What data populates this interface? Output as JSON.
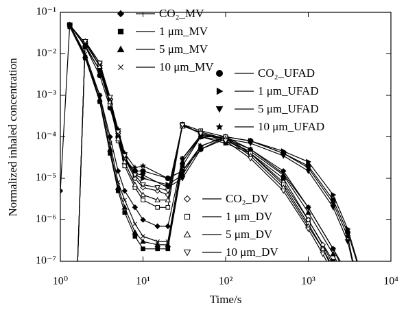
{
  "chart_data": {
    "type": "line",
    "x_label": "Time/s",
    "y_label": "Normalized inhaled concentration",
    "xlog": true,
    "ylog": true,
    "xlim": [
      1,
      10000
    ],
    "ylim": [
      1e-07,
      0.1
    ],
    "xticks": [
      {
        "value": 1,
        "label": "10⁰"
      },
      {
        "value": 10,
        "label": "10¹"
      },
      {
        "value": 100,
        "label": "10²"
      },
      {
        "value": 1000,
        "label": "10³"
      },
      {
        "value": 10000,
        "label": "10⁴"
      }
    ],
    "yticks": [
      {
        "value": 1e-07,
        "label": "10⁻⁷"
      },
      {
        "value": 1e-06,
        "label": "10⁻⁶"
      },
      {
        "value": 1e-05,
        "label": "10⁻⁵"
      },
      {
        "value": 0.0001,
        "label": "10⁻⁴"
      },
      {
        "value": 0.001,
        "label": "10⁻³"
      },
      {
        "value": 0.01,
        "label": "10⁻²"
      },
      {
        "value": 0.1,
        "label": "10⁻¹"
      }
    ],
    "series": [
      {
        "name": "CO₂_MV",
        "color": "#000000",
        "marker": "diamond",
        "fill": true,
        "x": [
          1,
          1.3,
          2,
          3,
          4,
          5,
          6,
          8,
          10,
          15,
          20,
          30,
          50,
          100,
          200,
          500,
          1000,
          2000,
          3000
        ],
        "values": [
          5e-06,
          0.05,
          0.008,
          0.001,
          0.0001,
          1.5e-05,
          5e-06,
          2e-06,
          1e-06,
          7e-07,
          7e-07,
          3e-05,
          0.0001,
          0.0001,
          5e-05,
          1.5e-05,
          2e-06,
          2e-07,
          5e-08
        ]
      },
      {
        "name": "1 μm_MV",
        "color": "#000000",
        "marker": "square",
        "fill": true,
        "x": [
          1.3,
          2,
          3,
          4,
          5,
          6,
          8,
          10,
          15,
          20,
          30,
          50,
          100,
          200,
          500,
          1000,
          2000,
          2500
        ],
        "values": [
          0.045,
          0.008,
          0.0007,
          4e-05,
          5e-06,
          1.5e-06,
          4e-07,
          2e-07,
          2e-07,
          2e-07,
          2e-05,
          0.0001,
          7e-05,
          4e-05,
          1e-05,
          1e-06,
          1e-07,
          5e-08
        ]
      },
      {
        "name": "5 μm_MV",
        "color": "#000000",
        "marker": "triangle",
        "fill": true,
        "x": [
          1.3,
          2,
          3,
          4,
          5,
          6,
          8,
          10,
          15,
          20,
          30,
          50,
          100,
          200,
          500,
          1000,
          2000,
          2500
        ],
        "values": [
          0.05,
          0.009,
          0.0008,
          5e-05,
          6e-06,
          2e-06,
          5e-07,
          3e-07,
          2.5e-07,
          2.5e-07,
          2.5e-05,
          0.0001,
          8e-05,
          4.5e-05,
          1.2e-05,
          1.5e-06,
          1.5e-07,
          6e-08
        ]
      },
      {
        "name": "10 μm_MV",
        "color": "#000000",
        "marker": "cross",
        "fill": false,
        "x": [
          1.3,
          2,
          3,
          4,
          5,
          6,
          8,
          10,
          15,
          20,
          30,
          50,
          100,
          200,
          500,
          1000,
          2000,
          2500
        ],
        "values": [
          0.05,
          0.01,
          0.001,
          7e-05,
          8e-06,
          3e-06,
          8e-07,
          4e-07,
          3e-07,
          3e-07,
          3e-05,
          0.00011,
          9e-05,
          5e-05,
          1.3e-05,
          2e-06,
          2e-07,
          8e-08
        ]
      },
      {
        "name": "CO₂_UFAD",
        "color": "#000000",
        "marker": "circle",
        "fill": true,
        "x": [
          1.3,
          2,
          3,
          4,
          5,
          6,
          8,
          10,
          20,
          30,
          50,
          100,
          200,
          500,
          1000,
          2000,
          3000,
          4000
        ],
        "values": [
          0.05,
          0.015,
          0.003,
          0.0005,
          0.0001,
          3e-05,
          1.5e-05,
          1.5e-05,
          1e-05,
          1.5e-05,
          5e-05,
          0.0001,
          8e-05,
          4e-05,
          2e-05,
          3e-06,
          5e-07,
          8e-08
        ]
      },
      {
        "name": "1 μm_UFAD",
        "color": "#000000",
        "marker": "right",
        "fill": true,
        "x": [
          1.3,
          2,
          3,
          4,
          5,
          6,
          8,
          10,
          20,
          30,
          50,
          100,
          200,
          500,
          1000,
          2000,
          3000,
          4000
        ],
        "values": [
          0.05,
          0.015,
          0.004,
          0.0006,
          0.0001,
          3e-05,
          1.2e-05,
          1e-05,
          7e-06,
          1.2e-05,
          6e-05,
          0.0001,
          8e-05,
          4.5e-05,
          2.5e-05,
          4e-06,
          6e-07,
          9e-08
        ]
      },
      {
        "name": "5 μm_UFAD",
        "color": "#000000",
        "marker": "down",
        "fill": true,
        "x": [
          1.3,
          2,
          3,
          4,
          5,
          6,
          8,
          10,
          20,
          30,
          50,
          100,
          200,
          500,
          1000,
          2000,
          3000,
          3500
        ],
        "values": [
          0.05,
          0.016,
          0.004,
          0.0007,
          0.00012,
          3e-05,
          1.3e-05,
          1.2e-05,
          6e-06,
          1e-05,
          5e-05,
          9e-05,
          7e-05,
          3.5e-05,
          1.5e-05,
          2e-06,
          3e-07,
          8e-08
        ]
      },
      {
        "name": "10 μm_UFAD",
        "color": "#000000",
        "marker": "star",
        "fill": true,
        "x": [
          1.3,
          2,
          3,
          4,
          5,
          6,
          8,
          10,
          20,
          30,
          50,
          100,
          200,
          500,
          1000,
          2000,
          3000,
          3500
        ],
        "values": [
          0.05,
          0.018,
          0.005,
          0.0008,
          0.00015,
          4e-05,
          1.8e-05,
          2e-05,
          1e-05,
          1.5e-05,
          6e-05,
          0.0001,
          8e-05,
          4e-05,
          1.8e-05,
          2.5e-06,
          4e-07,
          9e-08
        ]
      },
      {
        "name": "CO₂_DV",
        "color": "#000000",
        "marker": "diamond",
        "fill": false,
        "x": [
          1.6,
          2,
          3,
          4,
          5,
          6,
          8,
          10,
          15,
          20,
          30,
          50,
          100,
          200,
          500,
          1000,
          1500,
          2000
        ],
        "values": [
          5e-08,
          0.02,
          0.006,
          0.0008,
          0.00012,
          3e-05,
          1e-05,
          6e-06,
          5e-06,
          4e-06,
          0.0002,
          0.00012,
          9e-05,
          4e-05,
          8e-06,
          1e-06,
          2.5e-07,
          8e-08
        ]
      },
      {
        "name": "1 μm_DV",
        "color": "#000000",
        "marker": "square",
        "fill": false,
        "x": [
          1.6,
          2,
          3,
          4,
          5,
          6,
          8,
          10,
          15,
          20,
          30,
          50,
          100,
          200,
          500,
          1000,
          1500,
          2000
        ],
        "values": [
          5e-08,
          0.02,
          0.005,
          0.0006,
          8e-05,
          2e-05,
          6e-06,
          3e-06,
          2e-06,
          2e-06,
          0.0002,
          0.00014,
          0.0001,
          4e-05,
          7e-06,
          8e-07,
          2e-07,
          7e-08
        ]
      },
      {
        "name": "5 μm_DV",
        "color": "#000000",
        "marker": "triangle",
        "fill": false,
        "x": [
          1.6,
          2,
          3,
          4,
          5,
          6,
          8,
          10,
          15,
          20,
          30,
          50,
          100,
          200,
          500,
          1000,
          1500,
          2000
        ],
        "values": [
          5e-08,
          0.02,
          0.005,
          0.0007,
          9e-05,
          2.5e-05,
          7e-06,
          4e-06,
          3e-06,
          3e-06,
          0.00018,
          0.00013,
          9e-05,
          3.5e-05,
          6e-06,
          7e-07,
          2e-07,
          6e-08
        ]
      },
      {
        "name": "10 μm_DV",
        "color": "#000000",
        "marker": "down",
        "fill": false,
        "x": [
          1.6,
          2,
          3,
          4,
          5,
          6,
          8,
          10,
          15,
          20,
          30,
          50,
          100,
          200,
          500,
          1000,
          1500,
          2000
        ],
        "values": [
          5e-08,
          0.02,
          0.006,
          0.0009,
          0.00013,
          3.5e-05,
          1.2e-05,
          7e-06,
          6e-06,
          5e-06,
          0.00019,
          0.00012,
          8e-05,
          3e-05,
          5e-06,
          6e-07,
          1.5e-07,
          5e-08
        ]
      }
    ]
  }
}
